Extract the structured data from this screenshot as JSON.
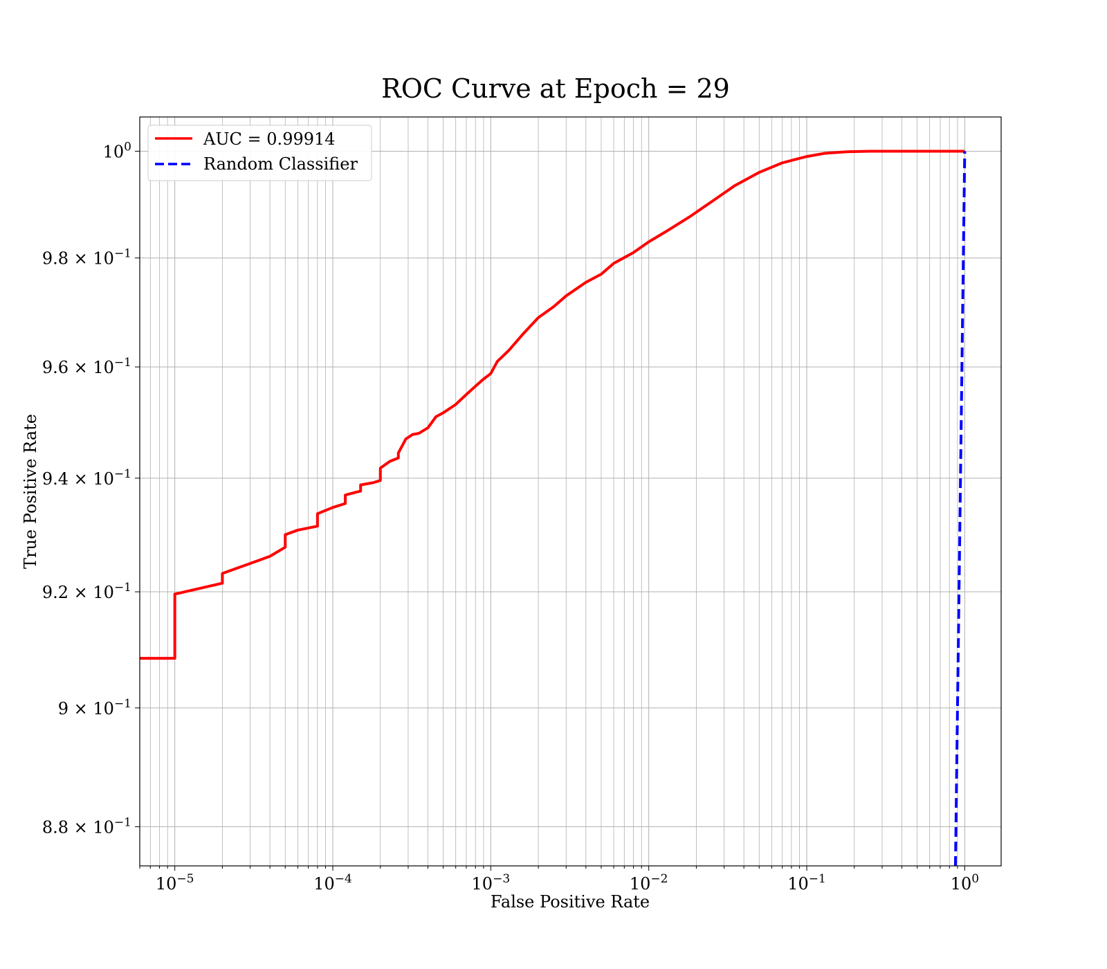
{
  "colors": {
    "roc_line": "#ff0000",
    "random_line": "#0000ff",
    "grid": "#b0b0b0",
    "axes": "#000000",
    "background": "#ffffff"
  },
  "chart_data": {
    "type": "line",
    "title": "ROC Curve at Epoch = 29",
    "xlabel": "False Positive Rate",
    "ylabel": "True Positive Rate",
    "xscale": "log",
    "yscale": "log",
    "xlim": [
      6e-06,
      1.7
    ],
    "ylim": [
      0.8735,
      1.0065
    ],
    "grid": true,
    "legend_position": "upper-left",
    "x_ticks": [
      {
        "value": 1e-05,
        "base": "10",
        "exp": "−5"
      },
      {
        "value": 0.0001,
        "base": "10",
        "exp": "−4"
      },
      {
        "value": 0.001,
        "base": "10",
        "exp": "−3"
      },
      {
        "value": 0.01,
        "base": "10",
        "exp": "−2"
      },
      {
        "value": 0.1,
        "base": "10",
        "exp": "−1"
      },
      {
        "value": 1,
        "base": "10",
        "exp": "0"
      }
    ],
    "y_ticks": [
      {
        "value": 1.0,
        "base": "10",
        "exp": "0"
      },
      {
        "value": 0.98,
        "base": "9.8 × 10",
        "exp": "−1"
      },
      {
        "value": 0.96,
        "base": "9.6 × 10",
        "exp": "−1"
      },
      {
        "value": 0.94,
        "base": "9.4 × 10",
        "exp": "−1"
      },
      {
        "value": 0.92,
        "base": "9.2 × 10",
        "exp": "−1"
      },
      {
        "value": 0.9,
        "base": "9 × 10",
        "exp": "−1"
      },
      {
        "value": 0.88,
        "base": "8.8 × 10",
        "exp": "−1"
      }
    ],
    "series": [
      {
        "name": "AUC = 0.99914",
        "style": "solid",
        "x": [
          6e-06,
          1e-05,
          1e-05,
          2e-05,
          2e-05,
          4e-05,
          5e-05,
          5e-05,
          6e-05,
          8e-05,
          8e-05,
          0.0001,
          0.00012,
          0.00012,
          0.00014,
          0.00015,
          0.00015,
          0.00018,
          0.0002,
          0.0002,
          0.00023,
          0.00026,
          0.00026,
          0.00029,
          0.00032,
          0.00035,
          0.0004,
          0.00045,
          0.0005,
          0.0006,
          0.0007,
          0.0008,
          0.0009,
          0.001,
          0.0011,
          0.0013,
          0.0016,
          0.002,
          0.0025,
          0.003,
          0.004,
          0.005,
          0.006,
          0.008,
          0.01,
          0.013,
          0.018,
          0.025,
          0.035,
          0.05,
          0.07,
          0.1,
          0.13,
          0.18,
          0.25,
          1
        ],
        "y": [
          0.9085,
          0.9085,
          0.9196,
          0.9215,
          0.9232,
          0.9262,
          0.9278,
          0.93,
          0.9308,
          0.9315,
          0.9337,
          0.9348,
          0.9355,
          0.937,
          0.9375,
          0.9377,
          0.9388,
          0.9392,
          0.9396,
          0.9418,
          0.943,
          0.9436,
          0.9445,
          0.947,
          0.9478,
          0.948,
          0.949,
          0.951,
          0.9517,
          0.9532,
          0.955,
          0.9565,
          0.9578,
          0.9588,
          0.961,
          0.963,
          0.966,
          0.969,
          0.971,
          0.973,
          0.9755,
          0.977,
          0.979,
          0.981,
          0.983,
          0.985,
          0.9876,
          0.9905,
          0.9935,
          0.996,
          0.9978,
          0.999,
          0.9996,
          0.9999,
          1.0,
          1.0
        ]
      },
      {
        "name": "Random Classifier",
        "style": "dashed",
        "x": [
          0.8735,
          1.0
        ],
        "y": [
          0.8735,
          1.0
        ]
      }
    ]
  }
}
